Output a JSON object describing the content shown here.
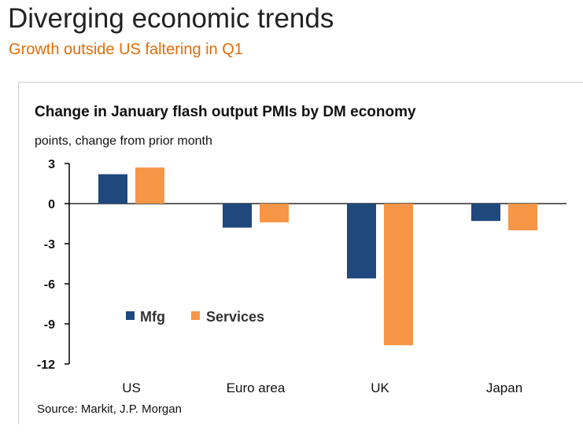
{
  "header": {
    "title": "Diverging economic trends",
    "subtitle": "Growth outside US faltering in Q1",
    "subtitle_color": "#E36C0A"
  },
  "chart_data": {
    "type": "bar",
    "title": "Change in January flash output PMIs by DM economy",
    "subtitle": "points, change from prior month",
    "categories": [
      "US",
      "Euro area",
      "UK",
      "Japan"
    ],
    "series": [
      {
        "name": "Mfg",
        "color": "#1F497D",
        "values": [
          2.2,
          -1.8,
          -5.6,
          -1.3
        ]
      },
      {
        "name": "Services",
        "color": "#F79646",
        "values": [
          2.7,
          -1.4,
          -10.6,
          -2.0
        ]
      }
    ],
    "ylim": [
      -12,
      3
    ],
    "yticks": [
      3,
      0,
      -3,
      -6,
      -9,
      -12
    ],
    "legend_position": "lower-left inside plot",
    "grid": false,
    "source": "Source: Markit, J.P. Morgan"
  }
}
